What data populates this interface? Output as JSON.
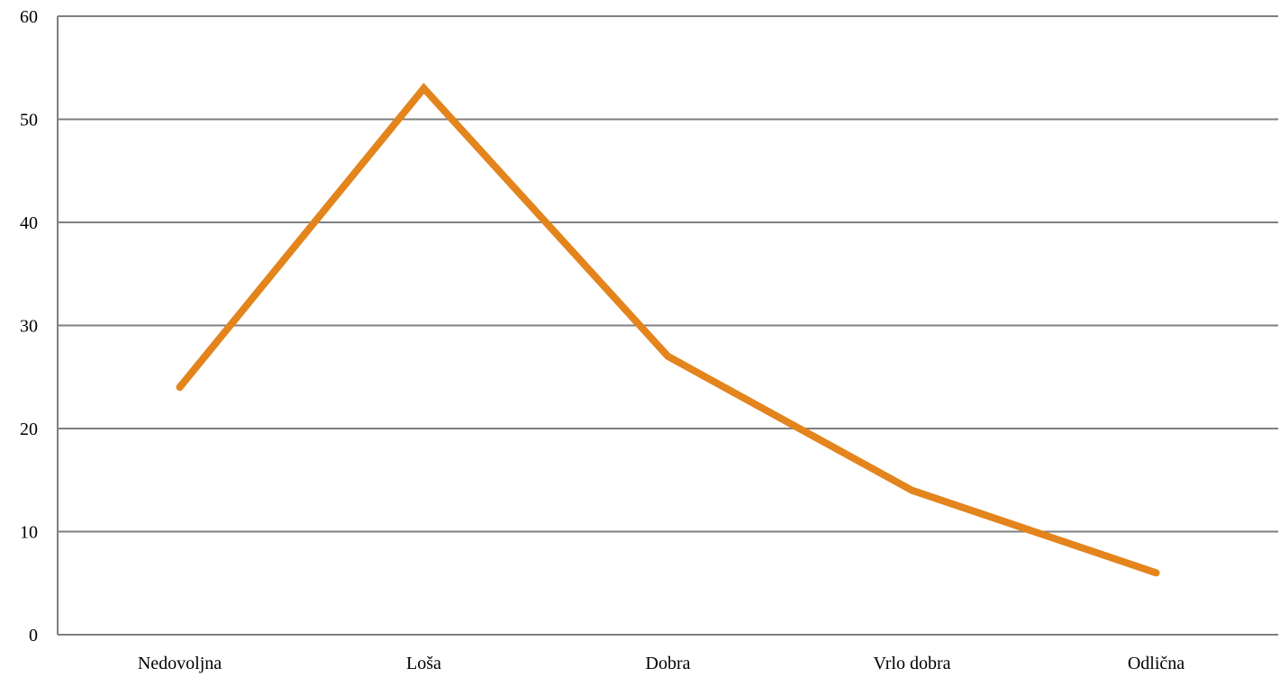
{
  "chart_data": {
    "type": "line",
    "title": "",
    "xlabel": "",
    "ylabel": "",
    "categories": [
      "Nedovoljna",
      "Loša",
      "Dobra",
      "Vrlo dobra",
      "Odlična"
    ],
    "series": [
      {
        "values": [
          24,
          53,
          27,
          14,
          6
        ],
        "color": "#e3841c"
      }
    ],
    "ylim": [
      0,
      60
    ],
    "yticks": [
      0,
      10,
      20,
      30,
      40,
      50,
      60
    ],
    "grid": true,
    "legend": "none"
  }
}
